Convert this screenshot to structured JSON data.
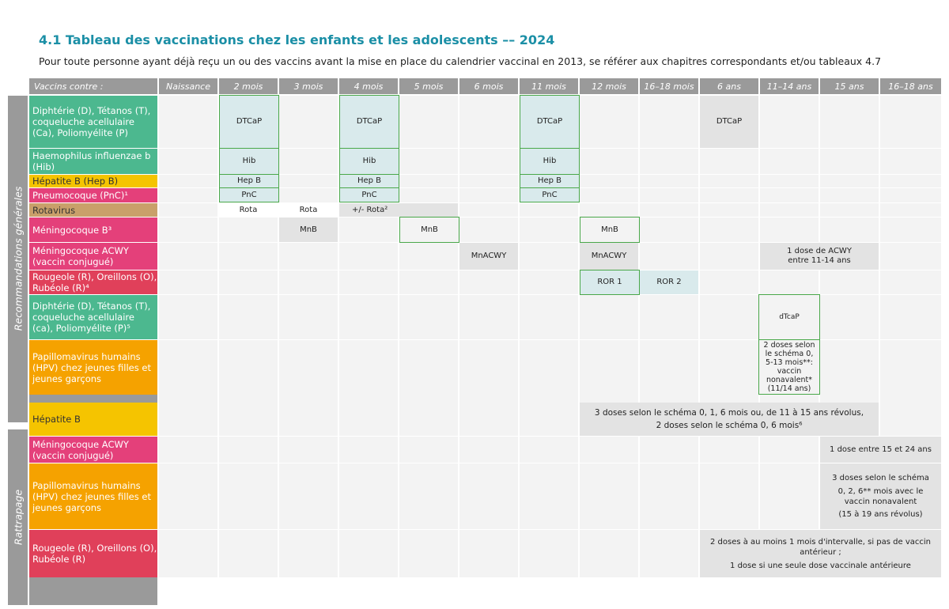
{
  "title": "4.1 Tableau des vaccinations chez les enfants et les adolescents –– 2024",
  "subtitle": "Pour toute personne ayant déjà reçu un ou des vaccins avant la mise en place du calendrier vaccinal en 2013, se référer aux chapitres correspondants et/ou tableaux 4.7",
  "header": [
    "Vaccins contre :",
    "Naissance",
    "2 mois",
    "3 mois",
    "4 mois",
    "5 mois",
    "6 mois",
    "11 mois",
    "12 mois",
    "16–18 mois",
    "6 ans",
    "11–14 ans",
    "15 ans",
    "16–18 ans"
  ],
  "sections": {
    "general": "Recommandations générales",
    "catchup": "Rattrapage"
  },
  "vaccines": {
    "dtcap": "Diphtérie (D), Tétanos (T), coqueluche acellulaire (Ca), Poliomyélite (P)",
    "hib": "Haemophilus influenzae b (Hib)",
    "hepb": "Hépatite B (Hep B)",
    "pnc": "Pneumocoque (PnC)¹",
    "rota": "Rotavirus",
    "mnb": "Méningocoque B³",
    "acwy": "Méningocoque ACWY (vaccin conjugué)",
    "ror": "Rougeole (R), Oreillons (O), Rubéole (R)⁴",
    "dtcap2": "Diphtérie (D), Tétanos (T), coqueluche acellulaire (ca), Poliomyélite (P)⁵",
    "hpv": "Papillomavirus humains (HPV) chez jeunes filles et jeunes garçons",
    "c_hepb": "Hépatite B",
    "c_acwy": "Méningocoque ACWY (vaccin conjugué)",
    "c_hpv": "Papillomavirus humains (HPV) chez jeunes filles et jeunes garçons",
    "c_ror": "Rougeole (R), Oreillons (O), Rubéole (R)"
  },
  "cells": {
    "dtcap": "DTCaP",
    "hib": "Hib",
    "hepb": "Hep B",
    "pnc": "PnC",
    "rota": "Rota",
    "rota_opt": "+/- Rota²",
    "mnb": "MnB",
    "acwy": "MnACWY",
    "acwy_1114": "1 dose de ACWY entre 11-14 ans",
    "ror1": "ROR 1",
    "ror2": "ROR 2",
    "dtcap_small": "dTcaP",
    "hpv_1114": "2 doses selon le schéma 0, 5-13 mois**: vaccin nonavalent* (11/14 ans)",
    "c_hepb_1": "3 doses selon le schéma 0, 1, 6 mois ou, de 11 à 15 ans révolus,",
    "c_hepb_2": "2 doses selon le schéma 0, 6 mois⁶",
    "c_acwy": "1 dose entre 15 et 24 ans",
    "c_hpv_1": "3 doses selon le schéma",
    "c_hpv_2": "0, 2, 6** mois avec le vaccin nonavalent",
    "c_hpv_3": "(15 à 19 ans révolus)",
    "c_ror_1": "2 doses à au moins 1 mois d'intervalle, si pas de vaccin antérieur ;",
    "c_ror_2": "1 dose si une seule dose vaccinale antérieure"
  },
  "colors": {
    "dtcap": "#4cb88f",
    "hepb": "#f5c400",
    "pnc": "#e4407a",
    "rota": "#c9a06a",
    "ror": "#e0405a",
    "hpv": "#f5a200",
    "header": "#9a9a9a",
    "title": "#1b8fa6",
    "green_border": "#4aa84a",
    "blue_fill": "#d9eaec"
  }
}
